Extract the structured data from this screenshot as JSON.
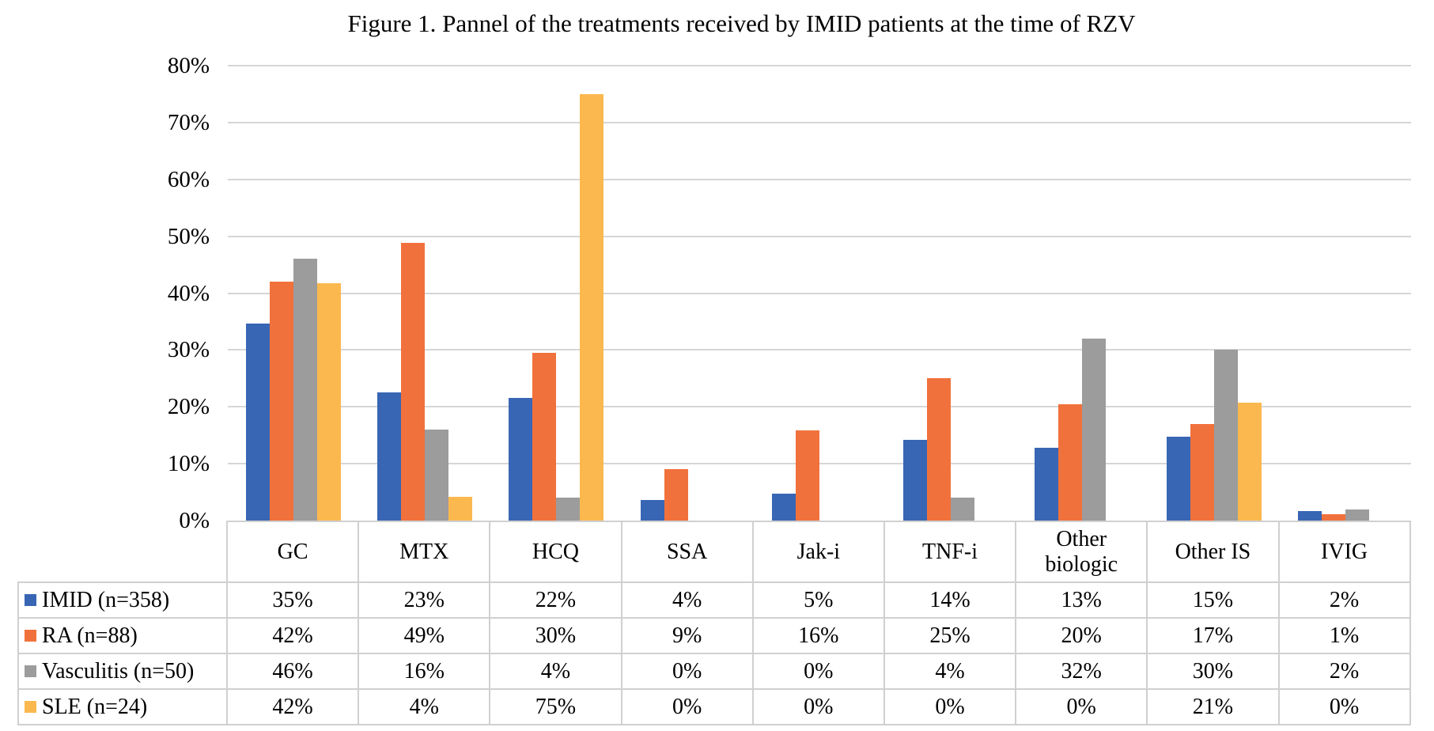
{
  "figure": {
    "title": "Figure 1. Pannel of the treatments received by IMID patients at the time of RZV"
  },
  "chart_data": {
    "type": "bar",
    "title": "Figure 1. Pannel of the treatments received by IMID patients at the time of RZV",
    "categories": [
      "GC",
      "MTX",
      "HCQ",
      "SSA",
      "Jak-i",
      "TNF-i",
      "Other biologic",
      "Other IS",
      "IVIG"
    ],
    "series": [
      {
        "name": "IMID (n=358)",
        "color": "#3866B4",
        "values": [
          34.6,
          22.6,
          21.5,
          3.6,
          4.7,
          14.2,
          12.8,
          14.8,
          1.7
        ],
        "table_labels": [
          "35%",
          "23%",
          "22%",
          "4%",
          "5%",
          "14%",
          "13%",
          "15%",
          "2%"
        ]
      },
      {
        "name": "RA (n=88)",
        "color": "#F1713C",
        "values": [
          42,
          48.9,
          29.5,
          9.1,
          15.9,
          25,
          20.5,
          17,
          1.1
        ],
        "table_labels": [
          "42%",
          "49%",
          "30%",
          "9%",
          "16%",
          "25%",
          "20%",
          "17%",
          "1%"
        ]
      },
      {
        "name": "Vasculitis (n=50)",
        "color": "#9C9C9C",
        "values": [
          46,
          16,
          4,
          0,
          0,
          4,
          32,
          30,
          2
        ],
        "table_labels": [
          "46%",
          "16%",
          "4%",
          "0%",
          "0%",
          "4%",
          "32%",
          "30%",
          "2%"
        ]
      },
      {
        "name": "SLE (n=24)",
        "color": "#FBB84F",
        "values": [
          41.7,
          4.2,
          75,
          0,
          0,
          0,
          0,
          20.8,
          0
        ],
        "table_labels": [
          "42%",
          "4%",
          "75%",
          "0%",
          "0%",
          "0%",
          "0%",
          "21%",
          "0%"
        ]
      }
    ],
    "xlabel": "",
    "ylabel": "",
    "ylim": [
      0,
      80
    ],
    "ytick_step": 10,
    "ytick_labels": [
      "0%",
      "10%",
      "20%",
      "30%",
      "40%",
      "50%",
      "60%",
      "70%",
      "80%"
    ],
    "grid": true,
    "legend_position": "data-table-left-column",
    "colors": {
      "gridline": "#D6D6D6",
      "table_border": "#D0D0D0",
      "text": "#000000",
      "background": "#FFFFFF"
    }
  }
}
